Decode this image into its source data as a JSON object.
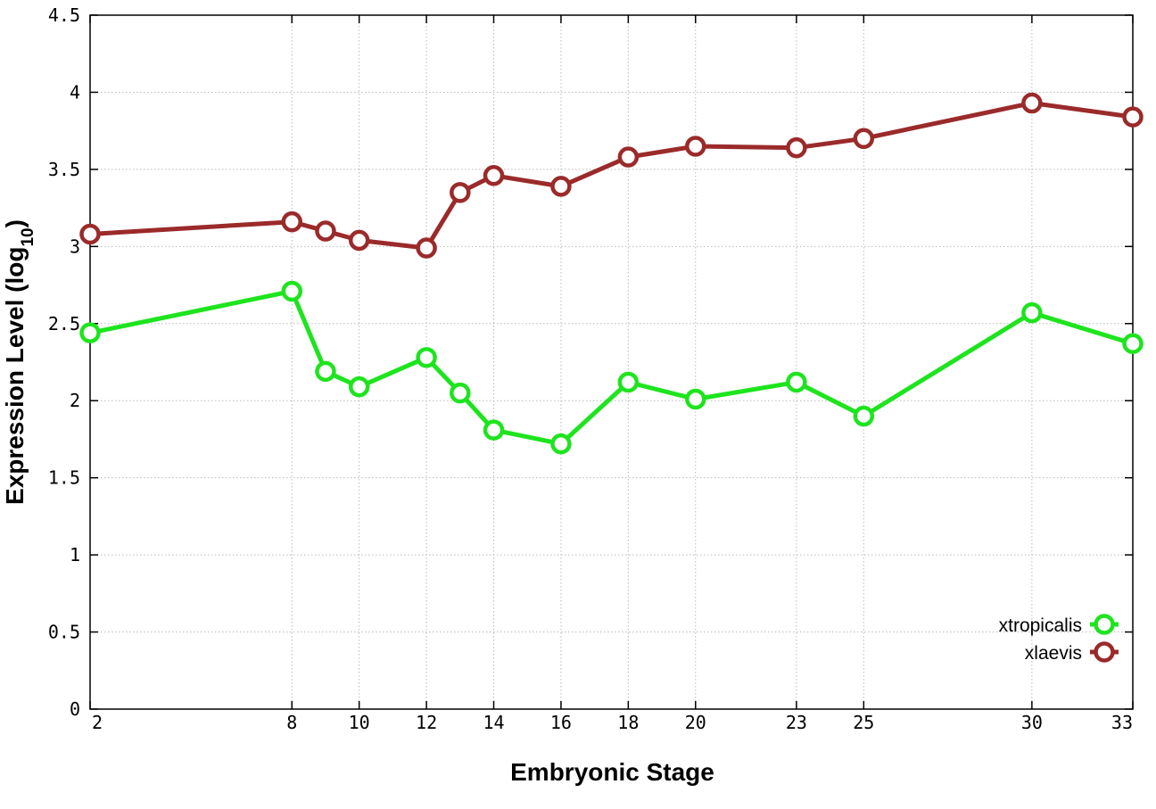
{
  "chart_data": {
    "type": "line",
    "xlabel": "Embryonic Stage",
    "ylabel_main": "Expression Level (log",
    "ylabel_sub": "10",
    "ylabel_close": ")",
    "x": [
      2,
      8,
      9,
      10,
      12,
      13,
      14,
      16,
      18,
      20,
      23,
      25,
      30,
      33
    ],
    "xticks": [
      2,
      8,
      10,
      12,
      14,
      16,
      18,
      20,
      23,
      25,
      30,
      33
    ],
    "xtick_labels": [
      "2",
      "8",
      "10",
      "12",
      "14",
      "16",
      "18",
      "20",
      "23",
      "25",
      "30",
      "33"
    ],
    "xlim": [
      2,
      33
    ],
    "ylim": [
      0,
      4.5
    ],
    "yticks": [
      0,
      0.5,
      1,
      1.5,
      2,
      2.5,
      3,
      3.5,
      4,
      4.5
    ],
    "ytick_labels": [
      "0",
      "0.5",
      "1",
      "1.5",
      "2",
      "2.5",
      "3",
      "3.5",
      "4",
      "4.5"
    ],
    "grid": true,
    "legend_position": "bottom-right",
    "series": [
      {
        "name": "xtropicalis",
        "color": "#1ee41e",
        "values": [
          2.44,
          2.71,
          2.19,
          2.09,
          2.28,
          2.05,
          1.81,
          1.72,
          2.12,
          2.01,
          2.12,
          1.9,
          2.57,
          2.37
        ]
      },
      {
        "name": "xlaevis",
        "color": "#9b2a2a",
        "values": [
          3.08,
          3.16,
          3.1,
          3.04,
          2.99,
          3.35,
          3.46,
          3.39,
          3.58,
          3.65,
          3.64,
          3.7,
          3.93,
          3.84
        ]
      }
    ]
  }
}
